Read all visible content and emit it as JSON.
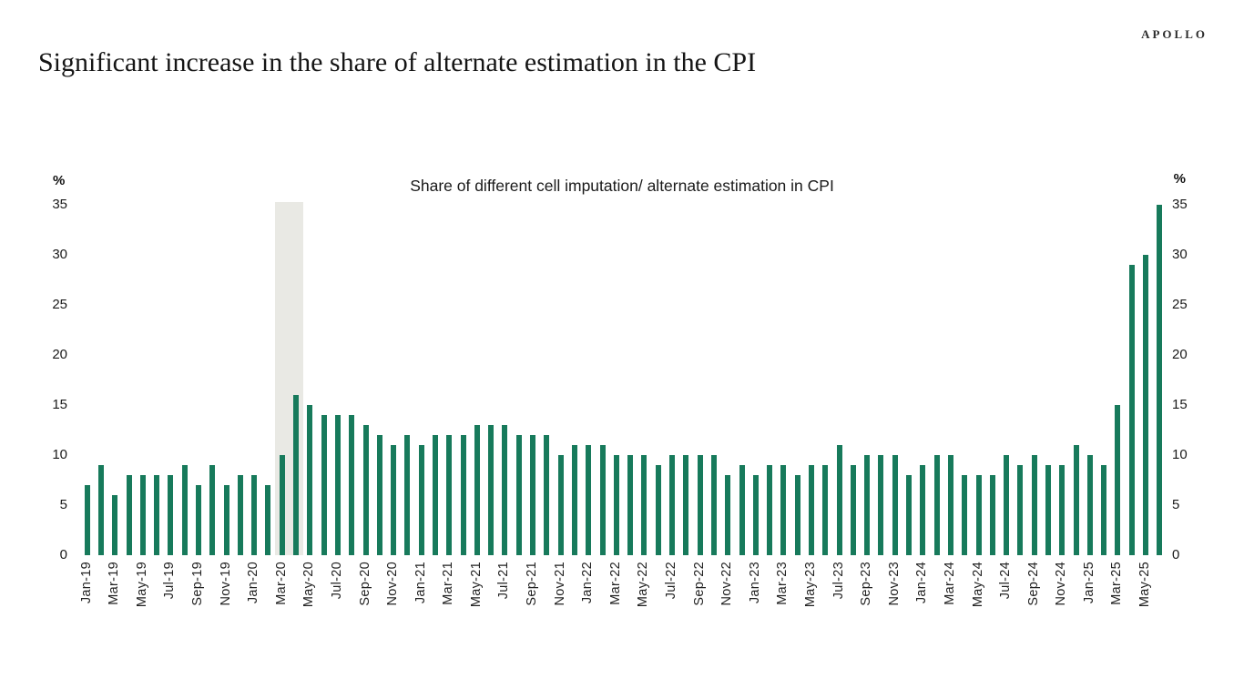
{
  "header": {
    "title": "Significant increase in the share of alternate estimation in the CPI",
    "brand": "APOLLO"
  },
  "chart_data": {
    "type": "bar",
    "title": "Share of different cell imputation/ alternate estimation in CPI",
    "unit_label": "%",
    "ylabel": "%",
    "ylim": [
      0,
      35
    ],
    "yticks": [
      0,
      5,
      10,
      15,
      20,
      25,
      30,
      35
    ],
    "grid": "off",
    "legend": "none",
    "bar_color": "#177a5b",
    "highlight": {
      "from": "Mar-20",
      "to": "Apr-20",
      "color": "#e9e9e4"
    },
    "x_tick_every": 2,
    "categories": [
      "Jan-19",
      "Feb-19",
      "Mar-19",
      "Apr-19",
      "May-19",
      "Jun-19",
      "Jul-19",
      "Aug-19",
      "Sep-19",
      "Oct-19",
      "Nov-19",
      "Dec-19",
      "Jan-20",
      "Feb-20",
      "Mar-20",
      "Apr-20",
      "May-20",
      "Jun-20",
      "Jul-20",
      "Aug-20",
      "Sep-20",
      "Oct-20",
      "Nov-20",
      "Dec-20",
      "Jan-21",
      "Feb-21",
      "Mar-21",
      "Apr-21",
      "May-21",
      "Jun-21",
      "Jul-21",
      "Aug-21",
      "Sep-21",
      "Oct-21",
      "Nov-21",
      "Dec-21",
      "Jan-22",
      "Feb-22",
      "Mar-22",
      "Apr-22",
      "May-22",
      "Jun-22",
      "Jul-22",
      "Aug-22",
      "Sep-22",
      "Oct-22",
      "Nov-22",
      "Dec-22",
      "Jan-23",
      "Feb-23",
      "Mar-23",
      "Apr-23",
      "May-23",
      "Jun-23",
      "Jul-23",
      "Aug-23",
      "Sep-23",
      "Oct-23",
      "Nov-23",
      "Dec-23",
      "Jan-24",
      "Feb-24",
      "Mar-24",
      "Apr-24",
      "May-24",
      "Jun-24",
      "Jul-24",
      "Aug-24",
      "Sep-24",
      "Oct-24",
      "Nov-24",
      "Dec-24",
      "Jan-25",
      "Feb-25",
      "Mar-25",
      "Apr-25",
      "May-25",
      "Jun-25"
    ],
    "values": [
      7,
      9,
      6,
      8,
      8,
      8,
      8,
      9,
      7,
      9,
      7,
      8,
      8,
      7,
      10,
      16,
      15,
      14,
      14,
      14,
      13,
      12,
      11,
      12,
      11,
      12,
      12,
      12,
      13,
      13,
      13,
      12,
      12,
      12,
      10,
      11,
      11,
      11,
      10,
      10,
      10,
      9,
      10,
      10,
      10,
      10,
      8,
      9,
      8,
      9,
      9,
      8,
      9,
      9,
      11,
      9,
      10,
      10,
      10,
      8,
      9,
      10,
      10,
      8,
      8,
      8,
      10,
      9,
      10,
      9,
      9,
      11,
      10,
      9,
      15,
      29,
      30,
      35
    ]
  }
}
